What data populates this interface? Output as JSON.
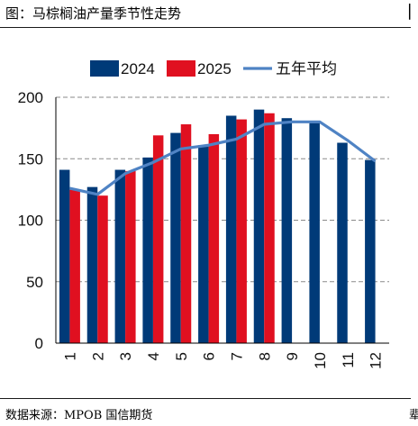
{
  "header": {
    "title": "图：马棕榈油产量季节性走势",
    "right_mark": "▏"
  },
  "footer": {
    "source": "数据来源：MPOB 国信期货",
    "right_mark": "辈"
  },
  "colors": {
    "series_2024": "#003a78",
    "series_2025": "#e01020",
    "series_avg": "#4f83c4",
    "gridline": "#8a8a8a"
  },
  "chart_data": {
    "type": "bar",
    "categories": [
      "1",
      "2",
      "3",
      "4",
      "5",
      "6",
      "7",
      "8",
      "9",
      "10",
      "11",
      "12"
    ],
    "series": [
      {
        "name": "2024",
        "type": "bar",
        "values": [
          141,
          127,
          141,
          151,
          171,
          161,
          185,
          190,
          183,
          179,
          163,
          149
        ]
      },
      {
        "name": "2025",
        "type": "bar",
        "values": [
          125,
          120,
          140,
          169,
          178,
          170,
          182,
          187,
          null,
          null,
          null,
          null
        ]
      },
      {
        "name": "五年平均",
        "type": "line",
        "values": [
          126,
          121,
          138,
          147,
          158,
          161,
          166,
          178,
          180,
          180,
          165,
          148
        ]
      }
    ],
    "ylim": [
      0,
      200
    ],
    "yticks": [
      0,
      50,
      100,
      150,
      200
    ],
    "grid": "horizontal dashed",
    "legend": "top-center"
  }
}
